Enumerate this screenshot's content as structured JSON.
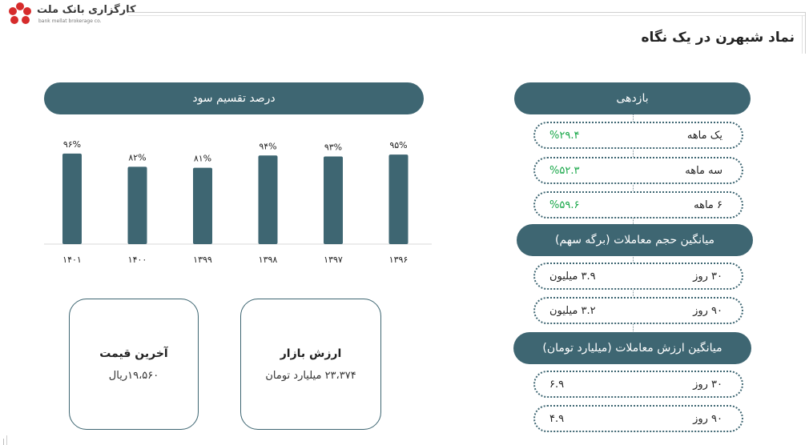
{
  "header": {
    "logo_text": "کارگزاری بانک ملت",
    "logo_sub": "bank mellat brokerage co.",
    "page_title": "نماد شبهرن در یک نگاه"
  },
  "chart": {
    "title": "درصد تقسیم سود"
  },
  "chart_data": {
    "type": "bar",
    "title": "درصد تقسیم سود",
    "categories": [
      "۱۳۹۶",
      "۱۳۹۷",
      "۱۳۹۸",
      "۱۳۹۹",
      "۱۴۰۰",
      "۱۴۰۱"
    ],
    "values": [
      95,
      93,
      94,
      81,
      82,
      96
    ],
    "data_labels": [
      "۹۵%",
      "۹۳%",
      "۹۴%",
      "۸۱%",
      "۸۲%",
      "۹۶%"
    ],
    "bar_color": "#3e6672",
    "xlabel": "",
    "ylabel": "",
    "grid": false
  },
  "cards": {
    "market_value": {
      "title": "ارزش بازار",
      "value": "۲۳،۳۷۴ میلیارد تومان"
    },
    "last_price": {
      "title": "آخرین قیمت",
      "value": "۱۹،۵۶۰ریال"
    }
  },
  "returns": {
    "title": "بازدهی",
    "rows": [
      {
        "label": "یک ماهه",
        "value": "%۲۹.۴"
      },
      {
        "label": "سه ماهه",
        "value": "%۵۲.۳"
      },
      {
        "label": "۶ ماهه",
        "value": "%۵۹.۶"
      }
    ]
  },
  "avg_volume": {
    "title": "میانگین حجم معاملات (برگه سهم)",
    "rows": [
      {
        "label": "۳۰ روز",
        "value": "۳.۹ میلیون"
      },
      {
        "label": "۹۰ روز",
        "value": "۳.۲ میلیون"
      }
    ]
  },
  "avg_value": {
    "title": "میانگین ارزش معاملات (میلیارد تومان)",
    "rows": [
      {
        "label": "۳۰ روز",
        "value": "۶.۹"
      },
      {
        "label": "۹۰ روز",
        "value": "۴.۹"
      }
    ]
  },
  "colors": {
    "accent": "#3e6672",
    "positive": "#1aa84a",
    "logo_red": "#d62b2b"
  }
}
